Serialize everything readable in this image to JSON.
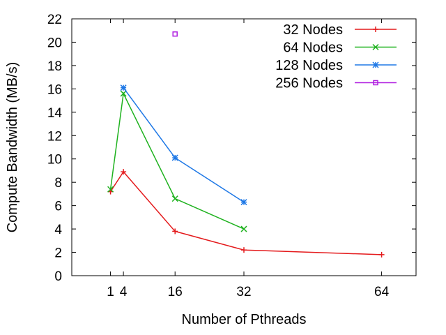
{
  "chart_data": {
    "type": "line",
    "xlabel": "Number of Pthreads",
    "ylabel": "Compute Bandwidth (MB/s)",
    "xlim": [
      -8,
      72
    ],
    "ylim": [
      0,
      22
    ],
    "xticks": [
      1,
      4,
      16,
      32,
      64
    ],
    "xtick_labels": [
      "1",
      "4",
      "16",
      "32",
      "64"
    ],
    "yticks": [
      0,
      2,
      4,
      6,
      8,
      10,
      12,
      14,
      16,
      18,
      20,
      22
    ],
    "ytick_labels": [
      "0",
      "2",
      "4",
      "6",
      "8",
      "10",
      "12",
      "14",
      "16",
      "18",
      "20",
      "22"
    ],
    "grid": false,
    "legend_position": "top-right",
    "series": [
      {
        "name": "32 Nodes",
        "color": "#e41a1c",
        "marker": "plus",
        "x": [
          1,
          4,
          16,
          32,
          64
        ],
        "y": [
          7.2,
          8.9,
          3.8,
          2.2,
          1.8
        ]
      },
      {
        "name": "64 Nodes",
        "color": "#1fb21f",
        "marker": "cross",
        "x": [
          1,
          4,
          16,
          32
        ],
        "y": [
          7.4,
          15.6,
          6.6,
          4.0
        ]
      },
      {
        "name": "128 Nodes",
        "color": "#1e78e6",
        "marker": "star",
        "x": [
          4,
          16,
          32
        ],
        "y": [
          16.1,
          10.1,
          6.3
        ]
      },
      {
        "name": "256 Nodes",
        "color": "#b01fe0",
        "marker": "square",
        "x": [
          16
        ],
        "y": [
          20.7
        ]
      }
    ]
  }
}
